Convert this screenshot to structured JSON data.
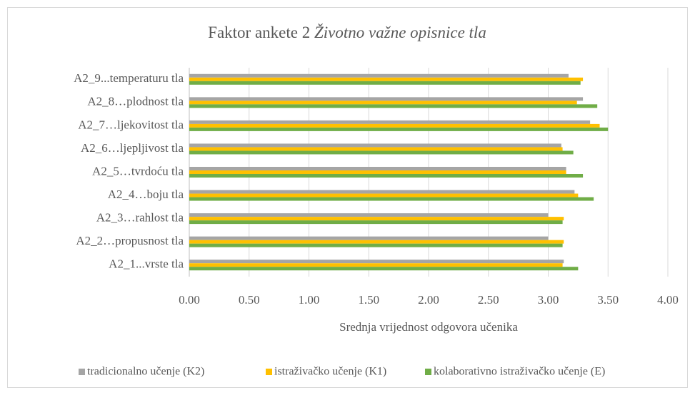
{
  "chart_data": {
    "type": "hbar",
    "title": [
      "Faktor ankete 2",
      "Životno važne opisnice tla"
    ],
    "x_label": "Srednja vrijednost odgovora učenika",
    "categories": [
      "A2_1...vrste tla",
      "A2_2…propusnost tla",
      "A2_3…rahlost tla",
      "A2_4…boju tla",
      "A2_5…tvrdoću tla",
      "A2_6…ljepljivost tla",
      "A2_7…ljekovitost tla",
      "A2_8…plodnost tla",
      "A2_9...temperaturu tla"
    ],
    "series": [
      {
        "name": "tradicionalno učenje (K2)",
        "color": "#a5a5a5",
        "values": [
          3.13,
          3.0,
          3.0,
          3.22,
          3.15,
          3.11,
          3.35,
          3.29,
          3.17
        ]
      },
      {
        "name": "istraživačko učenje (K1)",
        "color": "#ffc000",
        "values": [
          3.12,
          3.13,
          3.13,
          3.25,
          3.15,
          3.12,
          3.43,
          3.24,
          3.29
        ]
      },
      {
        "name": "kolaborativno istraživačko učenje (E)",
        "color": "#70ad47",
        "values": [
          3.25,
          3.12,
          3.12,
          3.38,
          3.29,
          3.21,
          3.5,
          3.41,
          3.27
        ]
      }
    ],
    "xlim": [
      0,
      4
    ],
    "xticks": [
      {
        "value": 0,
        "label": "0.00"
      },
      {
        "value": 0.5,
        "label": "0.50"
      },
      {
        "value": 1,
        "label": "1.00"
      },
      {
        "value": 1.5,
        "label": "1.50"
      },
      {
        "value": 2,
        "label": "2.00"
      },
      {
        "value": 2.5,
        "label": "2.50"
      },
      {
        "value": 3,
        "label": "3.00"
      },
      {
        "value": 3.5,
        "label": "3.50"
      },
      {
        "value": 4,
        "label": "4.00"
      }
    ],
    "grid": true,
    "legend": "bottom"
  }
}
